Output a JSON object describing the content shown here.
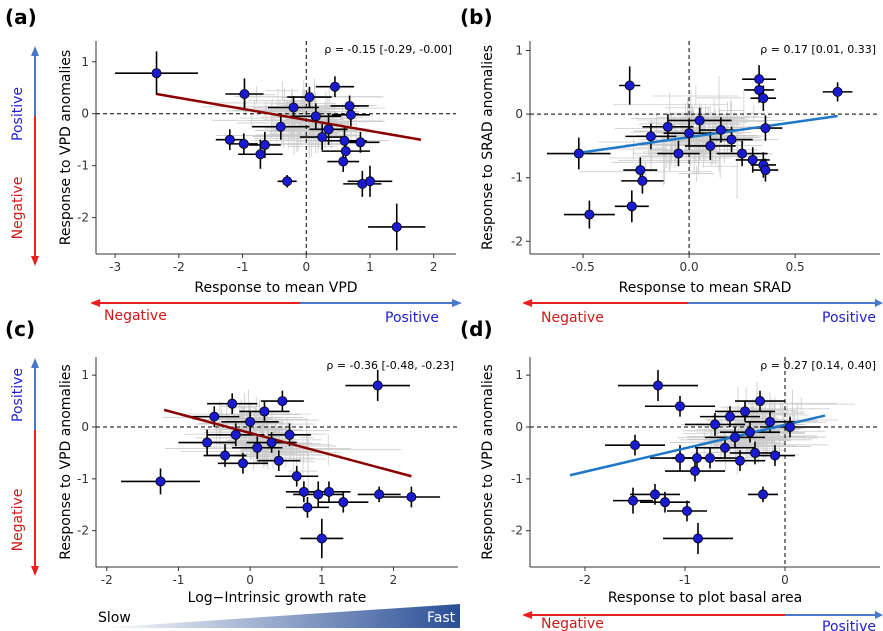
{
  "colors": {
    "point": "#1a1ad0",
    "negative": "#e8201f",
    "positive": "#4a78c8",
    "red_line": "#8b0000",
    "blue_line": "#1f77c8",
    "faint": "#b8b8d8",
    "ramp_dark": "#2a4f96"
  },
  "legend_arrows": {
    "positive": "Positive",
    "negative": "Negative",
    "slow": "Slow",
    "fast": "Fast"
  },
  "chart_data": [
    {
      "panel": "(a)",
      "type": "scatter",
      "xlabel": "Response to mean VPD",
      "ylabel": "Response to VPD anomalies",
      "xlim": [
        -3.3,
        2.35
      ],
      "ylim": [
        -2.7,
        1.4
      ],
      "xticks": [
        "-3",
        "-2",
        "-1",
        "0",
        "1",
        "2"
      ],
      "xtick_values": [
        -3,
        -2,
        -1,
        0,
        1,
        2
      ],
      "yticks": [
        "-2",
        "-1",
        "0",
        "1"
      ],
      "ytick_values": [
        -2,
        -1,
        0,
        1
      ],
      "rho": "ρ = -0.15 [-0.29, -0.00]",
      "vline": 0,
      "hline": 0,
      "trend": {
        "x": [
          -2.35,
          1.8
        ],
        "y": [
          0.38,
          -0.5
        ],
        "color": "red"
      },
      "points": [
        {
          "x": -2.35,
          "y": 0.78,
          "xerr": 0.65,
          "yerr": 0.42
        },
        {
          "x": -1.2,
          "y": -0.5,
          "xerr": 0.22,
          "yerr": 0.2
        },
        {
          "x": -0.97,
          "y": 0.38,
          "xerr": 0.3,
          "yerr": 0.3
        },
        {
          "x": -0.98,
          "y": -0.58,
          "xerr": 0.22,
          "yerr": 0.2
        },
        {
          "x": -0.72,
          "y": -0.78,
          "xerr": 0.35,
          "yerr": 0.28
        },
        {
          "x": -0.65,
          "y": -0.6,
          "xerr": 0.25,
          "yerr": 0.25
        },
        {
          "x": -0.3,
          "y": -1.3,
          "xerr": 0.15,
          "yerr": 0.12
        },
        {
          "x": -0.4,
          "y": -0.25,
          "xerr": 0.45,
          "yerr": 0.25
        },
        {
          "x": -0.2,
          "y": 0.12,
          "xerr": 0.4,
          "yerr": 0.22
        },
        {
          "x": 0.05,
          "y": 0.32,
          "xerr": 0.35,
          "yerr": 0.2
        },
        {
          "x": 0.15,
          "y": -0.05,
          "xerr": 0.4,
          "yerr": 0.25
        },
        {
          "x": 0.25,
          "y": -0.45,
          "xerr": 0.35,
          "yerr": 0.25
        },
        {
          "x": 0.35,
          "y": -0.3,
          "xerr": 0.3,
          "yerr": 0.3
        },
        {
          "x": 0.45,
          "y": 0.52,
          "xerr": 0.3,
          "yerr": 0.2
        },
        {
          "x": 0.6,
          "y": -0.52,
          "xerr": 0.35,
          "yerr": 0.28
        },
        {
          "x": 0.62,
          "y": -0.72,
          "xerr": 0.38,
          "yerr": 0.22
        },
        {
          "x": 0.68,
          "y": 0.15,
          "xerr": 0.3,
          "yerr": 0.2
        },
        {
          "x": 0.7,
          "y": -0.02,
          "xerr": 0.3,
          "yerr": 0.22
        },
        {
          "x": 0.58,
          "y": -0.92,
          "xerr": 0.25,
          "yerr": 0.2
        },
        {
          "x": 0.88,
          "y": -1.35,
          "xerr": 0.3,
          "yerr": 0.25
        },
        {
          "x": 1.0,
          "y": -1.3,
          "xerr": 0.35,
          "yerr": 0.3
        },
        {
          "x": 0.85,
          "y": -0.55,
          "xerr": 0.3,
          "yerr": 0.2
        },
        {
          "x": 1.42,
          "y": -2.18,
          "xerr": 0.45,
          "yerr": 0.45
        }
      ]
    },
    {
      "panel": "(b)",
      "type": "scatter",
      "xlabel": "Response to mean SRAD",
      "ylabel": "Response to SRAD anomalies",
      "xlim": [
        -0.75,
        0.9
      ],
      "ylim": [
        -2.2,
        1.15
      ],
      "xticks": [
        "-0.5",
        "0.0",
        "0.5"
      ],
      "xtick_values": [
        -0.5,
        0,
        0.5
      ],
      "yticks": [
        "-2",
        "-1",
        "0",
        "1"
      ],
      "ytick_values": [
        -2,
        -1,
        0,
        1
      ],
      "rho": "ρ = 0.17 [0.01, 0.33]",
      "vline": 0,
      "hline": 0,
      "trend": {
        "x": [
          -0.5,
          0.7
        ],
        "y": [
          -0.6,
          -0.03
        ],
        "color": "blue"
      },
      "points": [
        {
          "x": -0.52,
          "y": -0.62,
          "xerr": 0.15,
          "yerr": 0.25
        },
        {
          "x": -0.47,
          "y": -1.58,
          "xerr": 0.12,
          "yerr": 0.22
        },
        {
          "x": -0.28,
          "y": 0.45,
          "xerr": 0.05,
          "yerr": 0.3
        },
        {
          "x": -0.27,
          "y": -1.45,
          "xerr": 0.08,
          "yerr": 0.25
        },
        {
          "x": -0.23,
          "y": -0.88,
          "xerr": 0.08,
          "yerr": 0.2
        },
        {
          "x": -0.22,
          "y": -1.05,
          "xerr": 0.1,
          "yerr": 0.2
        },
        {
          "x": -0.18,
          "y": -0.35,
          "xerr": 0.12,
          "yerr": 0.2
        },
        {
          "x": -0.1,
          "y": -0.2,
          "xerr": 0.12,
          "yerr": 0.2
        },
        {
          "x": -0.05,
          "y": -0.62,
          "xerr": 0.1,
          "yerr": 0.2
        },
        {
          "x": 0.0,
          "y": -0.3,
          "xerr": 0.12,
          "yerr": 0.2
        },
        {
          "x": 0.05,
          "y": -0.1,
          "xerr": 0.15,
          "yerr": 0.2
        },
        {
          "x": 0.1,
          "y": -0.5,
          "xerr": 0.12,
          "yerr": 0.22
        },
        {
          "x": 0.15,
          "y": -0.25,
          "xerr": 0.1,
          "yerr": 0.2
        },
        {
          "x": 0.2,
          "y": -0.4,
          "xerr": 0.1,
          "yerr": 0.2
        },
        {
          "x": 0.25,
          "y": -0.62,
          "xerr": 0.12,
          "yerr": 0.2
        },
        {
          "x": 0.3,
          "y": -0.72,
          "xerr": 0.08,
          "yerr": 0.2
        },
        {
          "x": 0.33,
          "y": 0.55,
          "xerr": 0.08,
          "yerr": 0.22
        },
        {
          "x": 0.33,
          "y": 0.38,
          "xerr": 0.07,
          "yerr": 0.2
        },
        {
          "x": 0.35,
          "y": 0.25,
          "xerr": 0.06,
          "yerr": 0.2
        },
        {
          "x": 0.36,
          "y": -0.22,
          "xerr": 0.08,
          "yerr": 0.2
        },
        {
          "x": 0.35,
          "y": -0.8,
          "xerr": 0.06,
          "yerr": 0.2
        },
        {
          "x": 0.36,
          "y": -0.88,
          "xerr": 0.06,
          "yerr": 0.18
        },
        {
          "x": 0.7,
          "y": 0.35,
          "xerr": 0.07,
          "yerr": 0.15
        }
      ]
    },
    {
      "panel": "(c)",
      "type": "scatter",
      "xlabel": "Log−Intrinsic growth rate",
      "ylabel": "Response to VPD anomalies",
      "xlim": [
        -2.15,
        2.9
      ],
      "ylim": [
        -2.7,
        1.35
      ],
      "xticks": [
        "-2",
        "-1",
        "0",
        "1",
        "2"
      ],
      "xtick_values": [
        -2,
        -1,
        0,
        1,
        2
      ],
      "yticks": [
        "-2",
        "-1",
        "0",
        "1"
      ],
      "ytick_values": [
        -2,
        -1,
        0,
        1
      ],
      "rho": "ρ = -0.36 [-0.48, -0.23]",
      "vline": null,
      "hline": 0,
      "trend": {
        "x": [
          -1.2,
          2.25
        ],
        "y": [
          0.33,
          -0.95
        ],
        "color": "red"
      },
      "points": [
        {
          "x": -1.25,
          "y": -1.05,
          "xerr": 0.55,
          "yerr": 0.25
        },
        {
          "x": -0.6,
          "y": -0.3,
          "xerr": 0.4,
          "yerr": 0.25
        },
        {
          "x": -0.5,
          "y": 0.2,
          "xerr": 0.35,
          "yerr": 0.2
        },
        {
          "x": -0.35,
          "y": -0.55,
          "xerr": 0.3,
          "yerr": 0.22
        },
        {
          "x": -0.25,
          "y": 0.45,
          "xerr": 0.35,
          "yerr": 0.2
        },
        {
          "x": -0.2,
          "y": -0.15,
          "xerr": 0.4,
          "yerr": 0.22
        },
        {
          "x": -0.1,
          "y": -0.7,
          "xerr": 0.35,
          "yerr": 0.2
        },
        {
          "x": 0.0,
          "y": 0.1,
          "xerr": 0.4,
          "yerr": 0.2
        },
        {
          "x": 0.1,
          "y": -0.4,
          "xerr": 0.35,
          "yerr": 0.22
        },
        {
          "x": 0.2,
          "y": 0.3,
          "xerr": 0.35,
          "yerr": 0.2
        },
        {
          "x": 0.3,
          "y": -0.3,
          "xerr": 0.35,
          "yerr": 0.2
        },
        {
          "x": 0.4,
          "y": -0.65,
          "xerr": 0.3,
          "yerr": 0.2
        },
        {
          "x": 0.45,
          "y": 0.5,
          "xerr": 0.3,
          "yerr": 0.2
        },
        {
          "x": 0.55,
          "y": -0.15,
          "xerr": 0.3,
          "yerr": 0.22
        },
        {
          "x": 0.65,
          "y": -0.95,
          "xerr": 0.3,
          "yerr": 0.2
        },
        {
          "x": 0.75,
          "y": -1.25,
          "xerr": 0.25,
          "yerr": 0.2
        },
        {
          "x": 0.8,
          "y": -1.55,
          "xerr": 0.3,
          "yerr": 0.2
        },
        {
          "x": 0.95,
          "y": -1.3,
          "xerr": 0.35,
          "yerr": 0.25
        },
        {
          "x": 1.1,
          "y": -1.25,
          "xerr": 0.3,
          "yerr": 0.2
        },
        {
          "x": 1.3,
          "y": -1.45,
          "xerr": 0.35,
          "yerr": 0.2
        },
        {
          "x": 1.0,
          "y": -2.15,
          "xerr": 0.3,
          "yerr": 0.38
        },
        {
          "x": 1.8,
          "y": -1.3,
          "xerr": 0.3,
          "yerr": 0.15
        },
        {
          "x": 2.25,
          "y": -1.35,
          "xerr": 0.4,
          "yerr": 0.2
        },
        {
          "x": 1.78,
          "y": 0.8,
          "xerr": 0.45,
          "yerr": 0.3
        }
      ]
    },
    {
      "panel": "(d)",
      "type": "scatter",
      "xlabel": "Response to plot basal area",
      "ylabel": "Response to VPD anomalies",
      "xlim": [
        -2.55,
        0.95
      ],
      "ylim": [
        -2.7,
        1.35
      ],
      "xticks": [
        "-2",
        "-1",
        "0"
      ],
      "xtick_values": [
        -2,
        -1,
        0
      ],
      "yticks": [
        "-2",
        "-1",
        "0",
        "1"
      ],
      "ytick_values": [
        -2,
        -1,
        0,
        1
      ],
      "rho": "ρ = 0.27 [0.14, 0.40]",
      "vline": 0,
      "hline": 0,
      "trend": {
        "x": [
          -2.15,
          0.4
        ],
        "y": [
          -0.93,
          0.22
        ],
        "color": "blue"
      },
      "points": [
        {
          "x": -1.5,
          "y": -0.35,
          "xerr": 0.3,
          "yerr": 0.2
        },
        {
          "x": -1.52,
          "y": -1.42,
          "xerr": 0.2,
          "yerr": 0.25
        },
        {
          "x": -1.3,
          "y": -1.3,
          "xerr": 0.25,
          "yerr": 0.2
        },
        {
          "x": -1.27,
          "y": 0.8,
          "xerr": 0.4,
          "yerr": 0.3
        },
        {
          "x": -1.2,
          "y": -1.45,
          "xerr": 0.25,
          "yerr": 0.2
        },
        {
          "x": -1.05,
          "y": 0.4,
          "xerr": 0.35,
          "yerr": 0.2
        },
        {
          "x": -1.05,
          "y": -0.6,
          "xerr": 0.3,
          "yerr": 0.25
        },
        {
          "x": -0.98,
          "y": -1.62,
          "xerr": 0.2,
          "yerr": 0.2
        },
        {
          "x": -0.9,
          "y": -0.85,
          "xerr": 0.3,
          "yerr": 0.2
        },
        {
          "x": -0.88,
          "y": -0.6,
          "xerr": 0.25,
          "yerr": 0.2
        },
        {
          "x": -0.87,
          "y": -2.15,
          "xerr": 0.35,
          "yerr": 0.3
        },
        {
          "x": -0.75,
          "y": -0.6,
          "xerr": 0.3,
          "yerr": 0.2
        },
        {
          "x": -0.7,
          "y": 0.05,
          "xerr": 0.3,
          "yerr": 0.22
        },
        {
          "x": -0.6,
          "y": -0.4,
          "xerr": 0.3,
          "yerr": 0.2
        },
        {
          "x": -0.55,
          "y": 0.2,
          "xerr": 0.3,
          "yerr": 0.2
        },
        {
          "x": -0.5,
          "y": -0.2,
          "xerr": 0.3,
          "yerr": 0.2
        },
        {
          "x": -0.45,
          "y": -0.65,
          "xerr": 0.25,
          "yerr": 0.2
        },
        {
          "x": -0.4,
          "y": 0.3,
          "xerr": 0.3,
          "yerr": 0.2
        },
        {
          "x": -0.35,
          "y": -0.1,
          "xerr": 0.3,
          "yerr": 0.2
        },
        {
          "x": -0.3,
          "y": -0.5,
          "xerr": 0.25,
          "yerr": 0.22
        },
        {
          "x": -0.25,
          "y": 0.5,
          "xerr": 0.25,
          "yerr": 0.2
        },
        {
          "x": -0.22,
          "y": -1.3,
          "xerr": 0.15,
          "yerr": 0.15
        },
        {
          "x": -0.15,
          "y": 0.1,
          "xerr": 0.25,
          "yerr": 0.2
        },
        {
          "x": -0.1,
          "y": -0.55,
          "xerr": 0.2,
          "yerr": 0.2
        },
        {
          "x": 0.05,
          "y": 0.0,
          "xerr": 0.3,
          "yerr": 0.2
        }
      ]
    }
  ]
}
